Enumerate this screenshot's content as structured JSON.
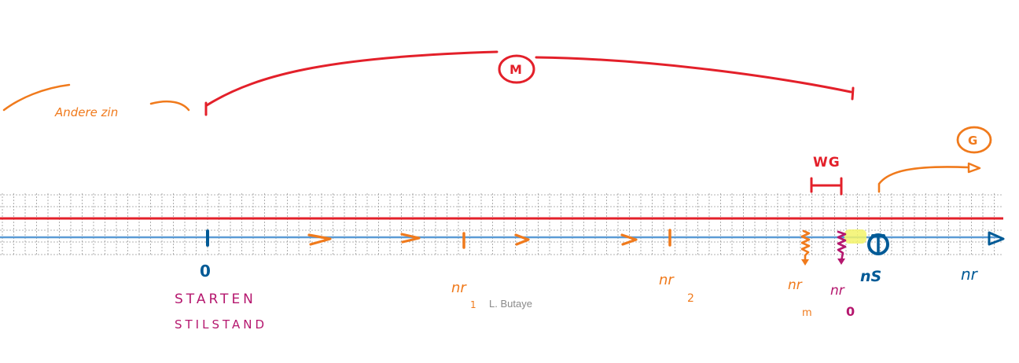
{
  "labels": {
    "andere_zin": "Andere zin",
    "m_circle": "M",
    "g_circle": "G",
    "wg": "WG",
    "zero": "0",
    "starten": "STARTEN",
    "stilstand": "STILSTAND",
    "nr1": "nr",
    "nr1_sub": "1",
    "nr2": "nr",
    "nr2_sub": "2",
    "nrm": "nr",
    "nrm_sub": "m",
    "nr0": "nr",
    "nr0_sub": "0",
    "ns": "nS",
    "n_axis": "nr",
    "credit": "L. Butaye"
  },
  "colors": {
    "orange": "#f07a1c",
    "red": "#e3202a",
    "blue": "#005a96",
    "axis_blue": "#5b9bd5",
    "magenta": "#b5176e",
    "highlight": "#f3f36a",
    "grid": "#9a9a9a"
  }
}
